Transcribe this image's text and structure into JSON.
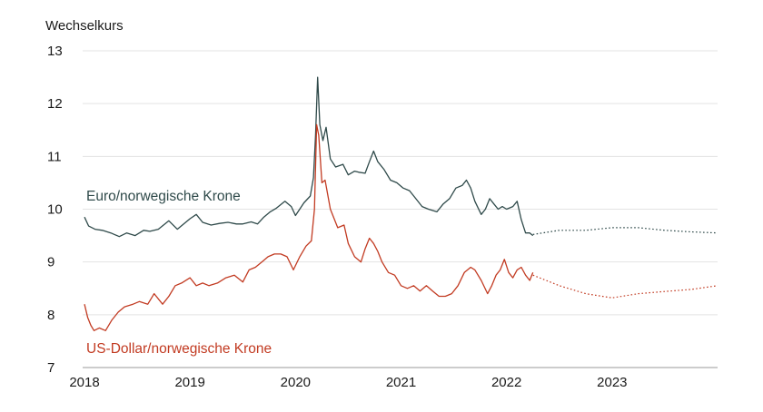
{
  "chart_data": {
    "type": "line",
    "title": "",
    "ylabel": "Wechselkurs",
    "xlabel": "",
    "ylim": [
      7,
      13
    ],
    "xlim": [
      2018.0,
      2024.0
    ],
    "yticks": [
      7,
      8,
      9,
      10,
      11,
      12,
      13
    ],
    "xticks": [
      "2018",
      "2019",
      "2020",
      "2021",
      "2022",
      "2023"
    ],
    "grid": true,
    "colors": {
      "eur_nok": "#2f4a4a",
      "usd_nok": "#c23b22",
      "grid": "#e3e3e3",
      "baseline": "#9a9a9a"
    },
    "series": [
      {
        "name": "Euro/norwegische Krone",
        "color": "#2f4a4a",
        "actual": [
          [
            2018.0,
            9.85
          ],
          [
            2018.04,
            9.68
          ],
          [
            2018.1,
            9.62
          ],
          [
            2018.17,
            9.6
          ],
          [
            2018.25,
            9.55
          ],
          [
            2018.33,
            9.48
          ],
          [
            2018.4,
            9.55
          ],
          [
            2018.48,
            9.5
          ],
          [
            2018.56,
            9.6
          ],
          [
            2018.62,
            9.58
          ],
          [
            2018.7,
            9.62
          ],
          [
            2018.8,
            9.78
          ],
          [
            2018.88,
            9.62
          ],
          [
            2019.0,
            9.82
          ],
          [
            2019.06,
            9.9
          ],
          [
            2019.12,
            9.75
          ],
          [
            2019.2,
            9.7
          ],
          [
            2019.28,
            9.73
          ],
          [
            2019.36,
            9.75
          ],
          [
            2019.44,
            9.72
          ],
          [
            2019.5,
            9.72
          ],
          [
            2019.58,
            9.76
          ],
          [
            2019.64,
            9.72
          ],
          [
            2019.7,
            9.85
          ],
          [
            2019.76,
            9.95
          ],
          [
            2019.82,
            10.02
          ],
          [
            2019.9,
            10.15
          ],
          [
            2019.96,
            10.05
          ],
          [
            2020.0,
            9.88
          ],
          [
            2020.08,
            10.12
          ],
          [
            2020.14,
            10.25
          ],
          [
            2020.17,
            10.6
          ],
          [
            2020.19,
            11.4
          ],
          [
            2020.21,
            12.5
          ],
          [
            2020.23,
            11.6
          ],
          [
            2020.26,
            11.3
          ],
          [
            2020.29,
            11.55
          ],
          [
            2020.33,
            10.95
          ],
          [
            2020.38,
            10.8
          ],
          [
            2020.45,
            10.85
          ],
          [
            2020.5,
            10.65
          ],
          [
            2020.56,
            10.72
          ],
          [
            2020.6,
            10.7
          ],
          [
            2020.66,
            10.68
          ],
          [
            2020.7,
            10.9
          ],
          [
            2020.74,
            11.1
          ],
          [
            2020.78,
            10.9
          ],
          [
            2020.84,
            10.75
          ],
          [
            2020.9,
            10.55
          ],
          [
            2020.96,
            10.5
          ],
          [
            2021.02,
            10.4
          ],
          [
            2021.08,
            10.35
          ],
          [
            2021.14,
            10.2
          ],
          [
            2021.2,
            10.05
          ],
          [
            2021.26,
            10.0
          ],
          [
            2021.34,
            9.95
          ],
          [
            2021.4,
            10.1
          ],
          [
            2021.46,
            10.2
          ],
          [
            2021.52,
            10.4
          ],
          [
            2021.58,
            10.45
          ],
          [
            2021.62,
            10.55
          ],
          [
            2021.66,
            10.4
          ],
          [
            2021.7,
            10.15
          ],
          [
            2021.76,
            9.9
          ],
          [
            2021.8,
            10.0
          ],
          [
            2021.84,
            10.2
          ],
          [
            2021.88,
            10.1
          ],
          [
            2021.92,
            10.0
          ],
          [
            2021.96,
            10.05
          ],
          [
            2022.0,
            10.0
          ],
          [
            2022.06,
            10.05
          ],
          [
            2022.1,
            10.15
          ],
          [
            2022.14,
            9.8
          ],
          [
            2022.18,
            9.55
          ],
          [
            2022.22,
            9.55
          ],
          [
            2022.25,
            9.5
          ]
        ],
        "forecast": [
          [
            2022.25,
            9.52
          ],
          [
            2022.5,
            9.6
          ],
          [
            2022.75,
            9.6
          ],
          [
            2023.0,
            9.65
          ],
          [
            2023.25,
            9.65
          ],
          [
            2023.5,
            9.6
          ],
          [
            2023.75,
            9.57
          ],
          [
            2024.0,
            9.55
          ]
        ]
      },
      {
        "name": "US-Dollar/norwegische Krone",
        "color": "#c23b22",
        "actual": [
          [
            2018.0,
            8.2
          ],
          [
            2018.03,
            7.95
          ],
          [
            2018.06,
            7.8
          ],
          [
            2018.09,
            7.7
          ],
          [
            2018.14,
            7.75
          ],
          [
            2018.2,
            7.7
          ],
          [
            2018.26,
            7.9
          ],
          [
            2018.32,
            8.05
          ],
          [
            2018.38,
            8.15
          ],
          [
            2018.46,
            8.2
          ],
          [
            2018.52,
            8.25
          ],
          [
            2018.6,
            8.2
          ],
          [
            2018.66,
            8.4
          ],
          [
            2018.74,
            8.2
          ],
          [
            2018.8,
            8.35
          ],
          [
            2018.86,
            8.55
          ],
          [
            2018.92,
            8.6
          ],
          [
            2019.0,
            8.7
          ],
          [
            2019.06,
            8.55
          ],
          [
            2019.12,
            8.6
          ],
          [
            2019.18,
            8.55
          ],
          [
            2019.26,
            8.6
          ],
          [
            2019.34,
            8.7
          ],
          [
            2019.42,
            8.75
          ],
          [
            2019.5,
            8.62
          ],
          [
            2019.56,
            8.85
          ],
          [
            2019.62,
            8.9
          ],
          [
            2019.68,
            9.0
          ],
          [
            2019.74,
            9.1
          ],
          [
            2019.8,
            9.15
          ],
          [
            2019.86,
            9.15
          ],
          [
            2019.92,
            9.1
          ],
          [
            2019.98,
            8.85
          ],
          [
            2020.04,
            9.1
          ],
          [
            2020.1,
            9.3
          ],
          [
            2020.15,
            9.4
          ],
          [
            2020.18,
            10.0
          ],
          [
            2020.2,
            11.6
          ],
          [
            2020.22,
            11.4
          ],
          [
            2020.25,
            10.5
          ],
          [
            2020.28,
            10.55
          ],
          [
            2020.33,
            10.0
          ],
          [
            2020.4,
            9.65
          ],
          [
            2020.46,
            9.7
          ],
          [
            2020.5,
            9.35
          ],
          [
            2020.56,
            9.1
          ],
          [
            2020.62,
            9.0
          ],
          [
            2020.66,
            9.25
          ],
          [
            2020.7,
            9.45
          ],
          [
            2020.74,
            9.35
          ],
          [
            2020.78,
            9.2
          ],
          [
            2020.82,
            9.0
          ],
          [
            2020.88,
            8.8
          ],
          [
            2020.94,
            8.75
          ],
          [
            2021.0,
            8.55
          ],
          [
            2021.06,
            8.5
          ],
          [
            2021.12,
            8.55
          ],
          [
            2021.18,
            8.45
          ],
          [
            2021.24,
            8.55
          ],
          [
            2021.3,
            8.45
          ],
          [
            2021.36,
            8.35
          ],
          [
            2021.42,
            8.35
          ],
          [
            2021.48,
            8.4
          ],
          [
            2021.54,
            8.55
          ],
          [
            2021.6,
            8.8
          ],
          [
            2021.66,
            8.9
          ],
          [
            2021.7,
            8.85
          ],
          [
            2021.76,
            8.65
          ],
          [
            2021.82,
            8.4
          ],
          [
            2021.86,
            8.55
          ],
          [
            2021.9,
            8.75
          ],
          [
            2021.94,
            8.85
          ],
          [
            2021.98,
            9.05
          ],
          [
            2022.02,
            8.8
          ],
          [
            2022.06,
            8.7
          ],
          [
            2022.1,
            8.85
          ],
          [
            2022.14,
            8.9
          ],
          [
            2022.18,
            8.75
          ],
          [
            2022.22,
            8.65
          ],
          [
            2022.25,
            8.8
          ]
        ],
        "forecast": [
          [
            2022.25,
            8.75
          ],
          [
            2022.5,
            8.55
          ],
          [
            2022.75,
            8.4
          ],
          [
            2023.0,
            8.32
          ],
          [
            2023.25,
            8.4
          ],
          [
            2023.5,
            8.44
          ],
          [
            2023.75,
            8.48
          ],
          [
            2024.0,
            8.55
          ]
        ]
      }
    ]
  }
}
